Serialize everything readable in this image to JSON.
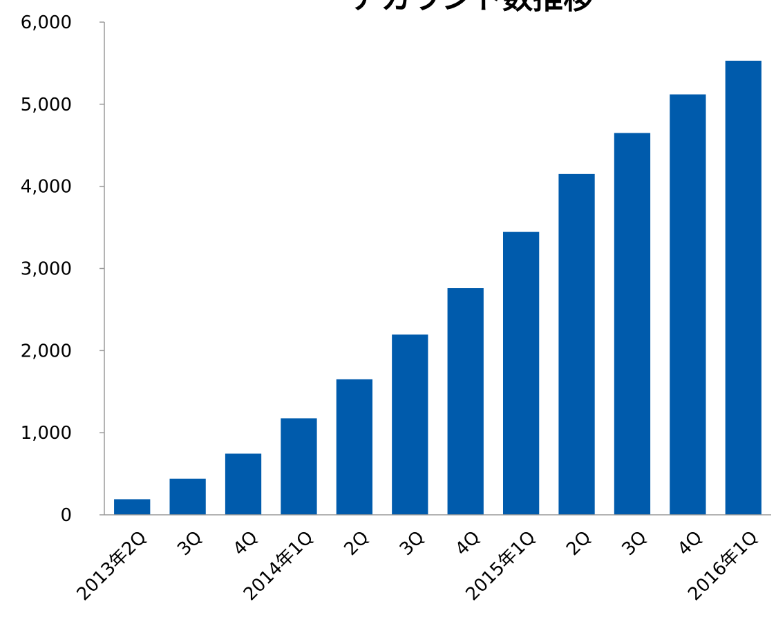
{
  "chart_data": {
    "type": "bar",
    "title": "アカウント数推移",
    "xlabel": "",
    "ylabel": "",
    "categories": [
      "2013年2Q",
      "3Q",
      "4Q",
      "2014年1Q",
      "2Q",
      "3Q",
      "4Q",
      "2015年1Q",
      "2Q",
      "3Q",
      "4Q",
      "2016年1Q"
    ],
    "values": [
      190,
      440,
      745,
      1175,
      1650,
      2195,
      2760,
      3445,
      4150,
      4650,
      5120,
      5530
    ],
    "ylim": [
      0,
      6000
    ],
    "yticks": [
      "0",
      "1,000",
      "2,000",
      "3,000",
      "4,000",
      "5,000",
      "6,000"
    ],
    "ytick_values": [
      0,
      1000,
      2000,
      3000,
      4000,
      5000,
      6000
    ],
    "bar_color": "#005bac",
    "grid": false,
    "legend": "none"
  }
}
